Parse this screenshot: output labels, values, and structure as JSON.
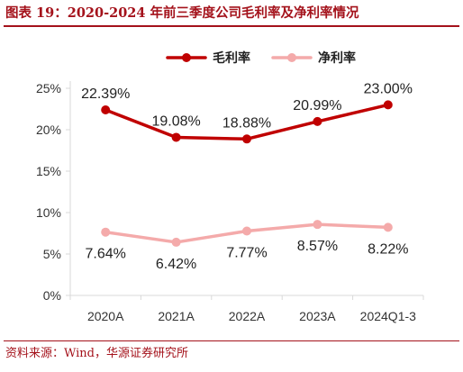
{
  "header": {
    "title": "图表 19：2020-2024 年前三季度公司毛利率及净利率情况"
  },
  "footer": {
    "source": "资料来源：Wind，华源证券研究所"
  },
  "colors": {
    "brand": "#a4121b",
    "gross_line": "#c00000",
    "net_line": "#f4aaaa",
    "axis": "#d9d9d9"
  },
  "chart_data": {
    "type": "line",
    "title": "",
    "xlabel": "",
    "ylabel": "",
    "categories": [
      "2020A",
      "2021A",
      "2022A",
      "2023A",
      "2024Q1-3"
    ],
    "ylim": [
      0,
      25
    ],
    "yticks": [
      0,
      5,
      10,
      15,
      20,
      25
    ],
    "ytick_labels": [
      "0%",
      "5%",
      "10%",
      "15%",
      "20%",
      "25%"
    ],
    "grid": false,
    "legend_position": "top-center",
    "series": [
      {
        "name": "毛利率",
        "values": [
          22.39,
          19.08,
          18.88,
          20.99,
          23.0
        ],
        "labels": [
          "22.39%",
          "19.08%",
          "18.88%",
          "20.99%",
          "23.00%"
        ],
        "color": "#c00000",
        "label_position": "above"
      },
      {
        "name": "净利率",
        "values": [
          7.64,
          6.42,
          7.77,
          8.57,
          8.22
        ],
        "labels": [
          "7.64%",
          "6.42%",
          "7.77%",
          "8.57%",
          "8.22%"
        ],
        "color": "#f4aaaa",
        "label_position": "below"
      }
    ]
  }
}
